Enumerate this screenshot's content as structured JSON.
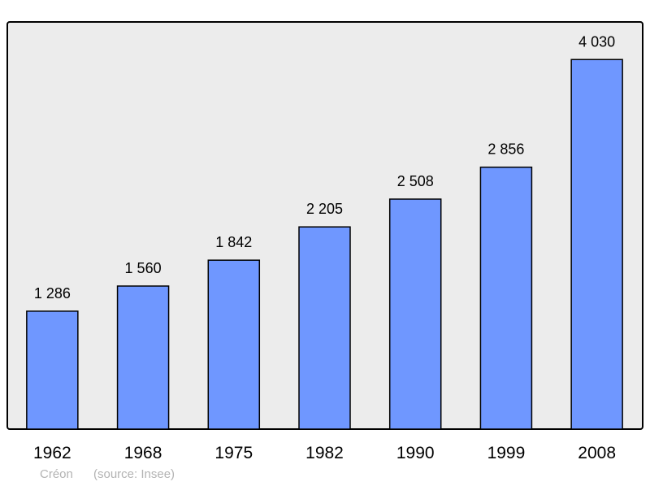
{
  "chart_data": {
    "type": "bar",
    "categories": [
      "1962",
      "1968",
      "1975",
      "1982",
      "1990",
      "1999",
      "2008"
    ],
    "values": [
      1286,
      1560,
      1842,
      2205,
      2508,
      2856,
      4030
    ],
    "data_labels": [
      "1 286",
      "1 560",
      "1 842",
      "2 205",
      "2 508",
      "2 856",
      "4 030"
    ],
    "title": "",
    "xlabel": "",
    "ylabel": "",
    "ylim": [
      0,
      4440
    ],
    "grid": false,
    "bar_color": "#6f97ff",
    "background_color": "#ececec"
  },
  "footer": {
    "place": "Créon",
    "source": "(source: Insee)"
  }
}
